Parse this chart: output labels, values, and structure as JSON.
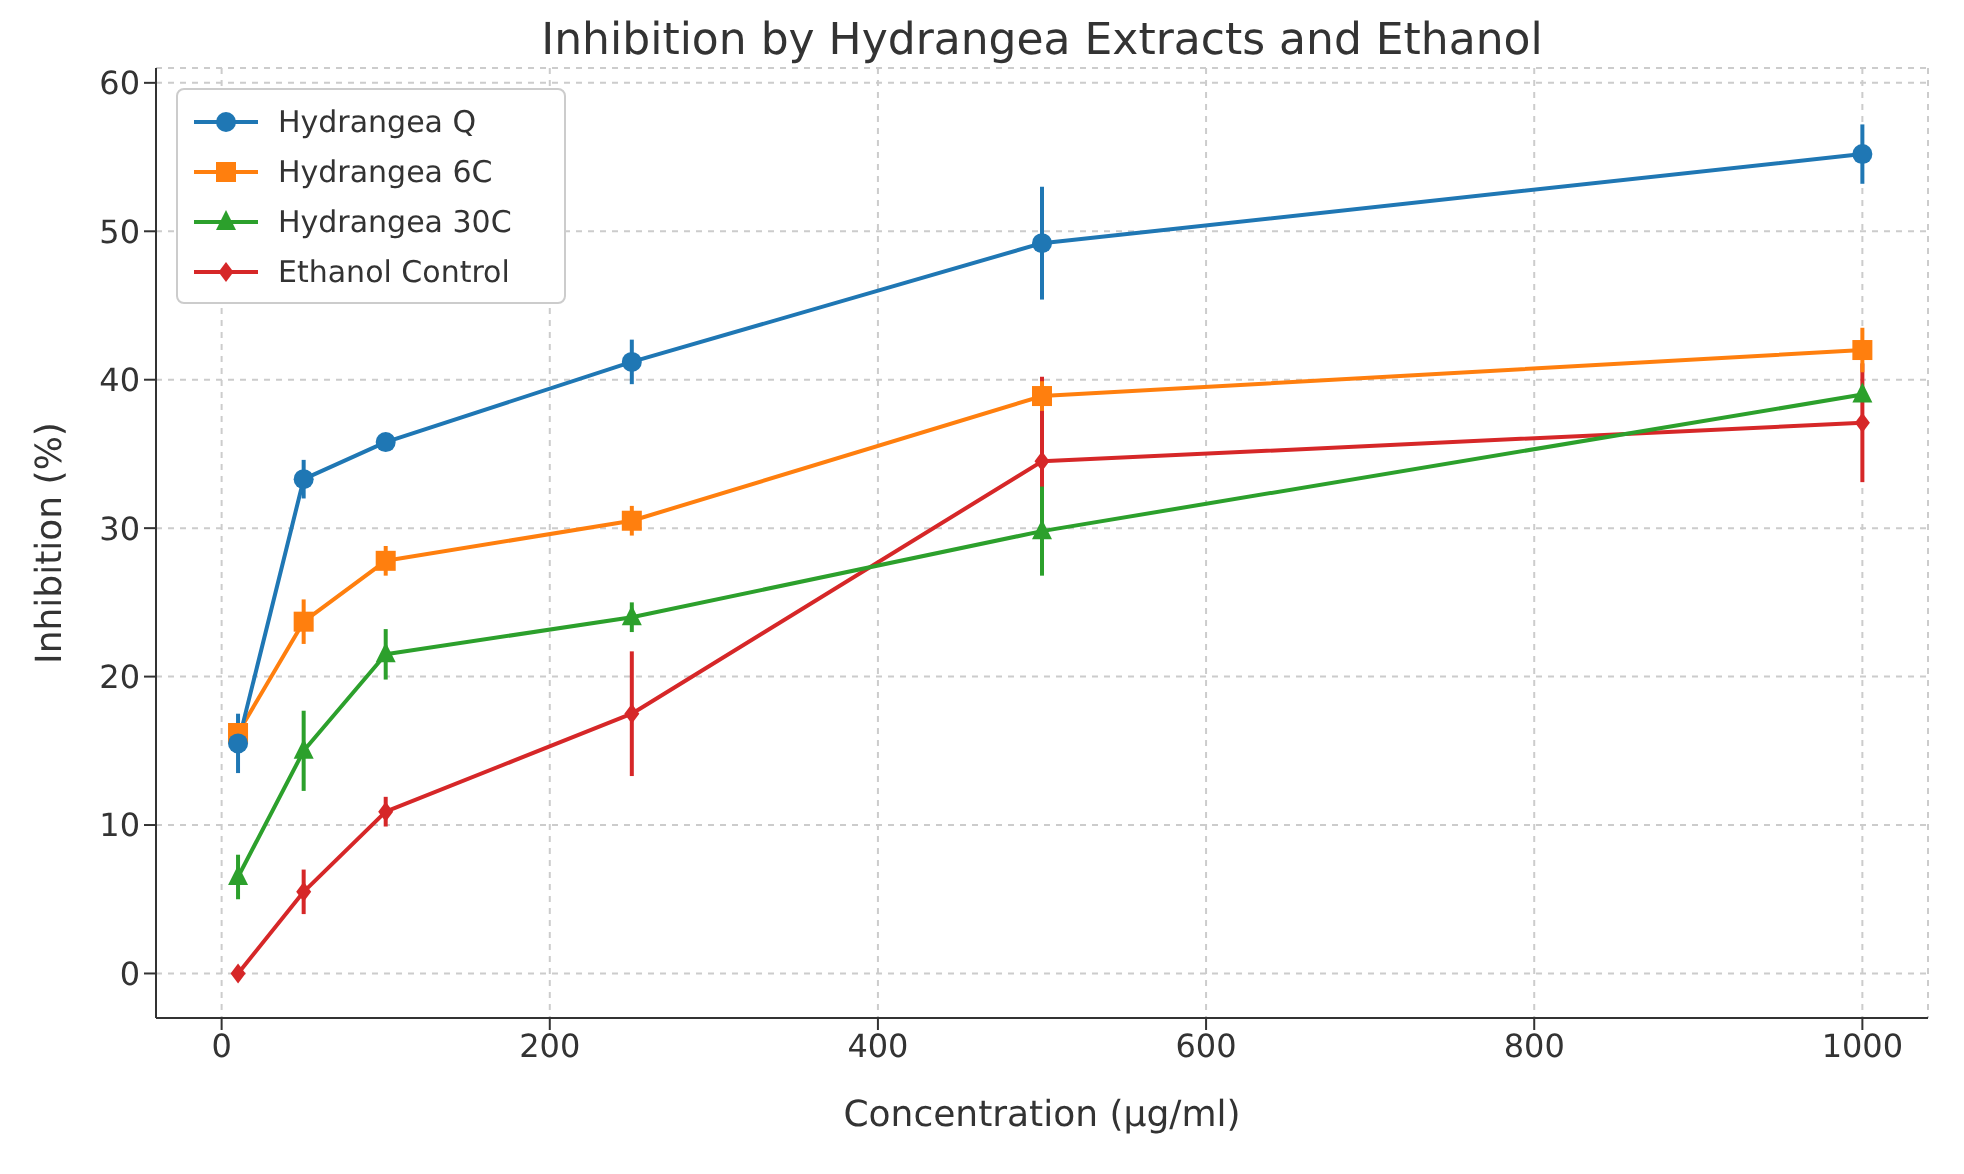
{
  "chart_data": {
    "type": "line",
    "title": "Inhibition by Hydrangea Extracts and Ethanol",
    "xlabel": "Concentration (µg/ml)",
    "ylabel": "Inhibition (%)",
    "x": [
      10,
      50,
      100,
      250,
      500,
      1000
    ],
    "series": [
      {
        "name": "Hydrangea Q",
        "color": "#1f77b4",
        "marker": "circle",
        "values": [
          15.5,
          33.3,
          35.8,
          41.2,
          49.2,
          55.2
        ],
        "errors": [
          2,
          1.3,
          0.5,
          1.5,
          3.8,
          2
        ]
      },
      {
        "name": "Hydrangea 6C",
        "color": "#ff7f0e",
        "marker": "square",
        "values": [
          16.2,
          23.7,
          27.8,
          30.5,
          38.9,
          42
        ],
        "errors": [
          null,
          1.5,
          1,
          1,
          1,
          1.5
        ]
      },
      {
        "name": "Hydrangea 30C",
        "color": "#2ca02c",
        "marker": "triangle",
        "values": [
          6.5,
          15,
          21.5,
          24,
          29.8,
          39
        ],
        "errors": [
          1.5,
          2.7,
          1.7,
          1,
          3,
          0.5
        ]
      },
      {
        "name": "Ethanol Control",
        "color": "#d62728",
        "marker": "diamond",
        "values": [
          0,
          5.5,
          10.9,
          17.5,
          34.5,
          37.1
        ],
        "errors": [
          0.5,
          1.5,
          1,
          4.2,
          5.7,
          4
        ]
      }
    ],
    "xlim": [
      -40,
      1040
    ],
    "ylim": [
      -3,
      61
    ],
    "xticks": [
      0,
      200,
      400,
      600,
      800,
      1000
    ],
    "yticks": [
      0,
      10,
      20,
      30,
      40,
      50,
      60
    ],
    "grid": true,
    "legend": "top left",
    "line_style": "solid"
  }
}
